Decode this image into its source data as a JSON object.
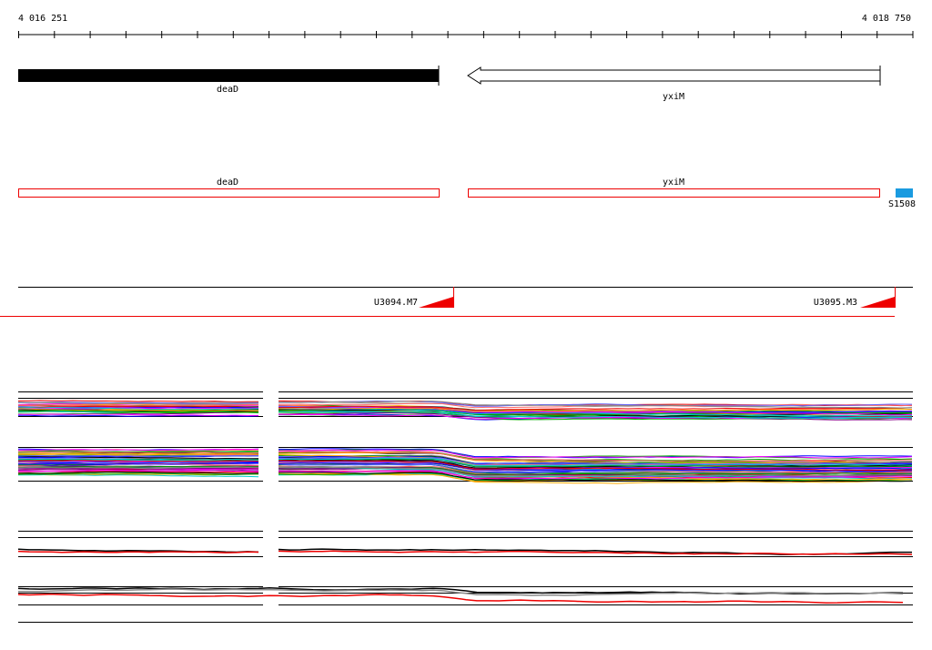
{
  "ruler": {
    "start": "4 016 251",
    "end": "4 018 750"
  },
  "genes": [
    {
      "label": "deaD"
    },
    {
      "label": "yxiM"
    }
  ],
  "annotations": [
    {
      "label": "deaD"
    },
    {
      "label": "yxiM"
    },
    {
      "label": "S1508"
    }
  ],
  "segments": [
    {
      "label": "U3094.M7"
    },
    {
      "label": "U3095.M3"
    }
  ]
}
